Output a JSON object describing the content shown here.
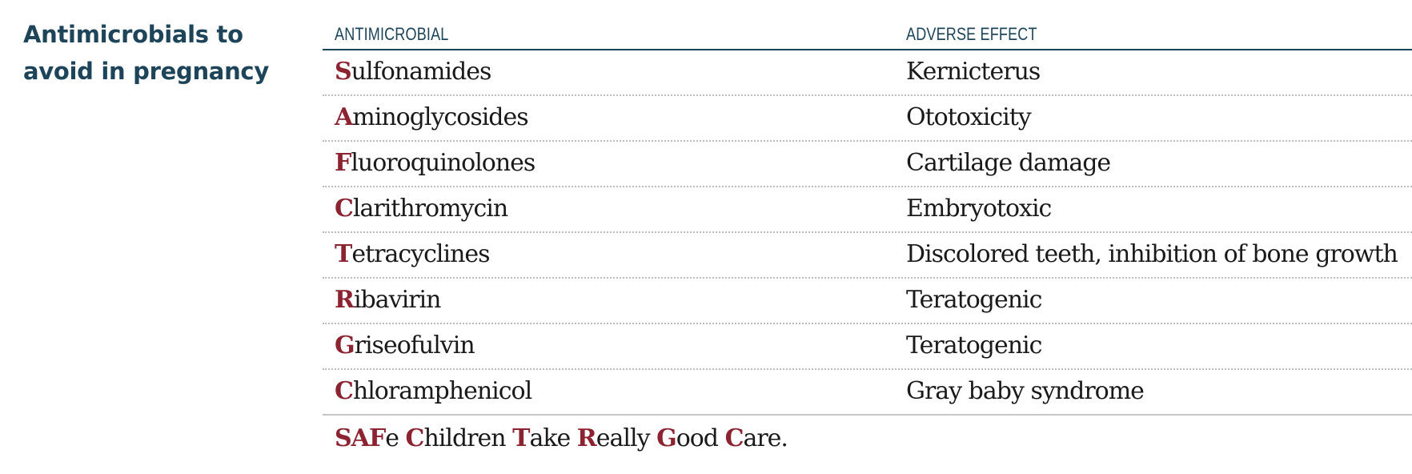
{
  "side_title": {
    "line1": "Antimicrobials to",
    "line2": "avoid in pregnancy"
  },
  "headers": {
    "antimicrobial": "ANTIMICROBIAL",
    "adverse_effect": "ADVERSE EFFECT"
  },
  "rows": [
    {
      "initial": "S",
      "drug_rest": "ulfonamides",
      "effect": "Kernicterus"
    },
    {
      "initial": "A",
      "drug_rest": "minoglycosides",
      "effect": "Ototoxicity"
    },
    {
      "initial": "F",
      "drug_rest": "luoroquinolones",
      "effect": "Cartilage damage"
    },
    {
      "initial": "C",
      "drug_rest": "larithromycin",
      "effect": "Embryotoxic"
    },
    {
      "initial": "T",
      "drug_rest": "etracyclines",
      "effect": "Discolored teeth, inhibition of bone growth"
    },
    {
      "initial": "R",
      "drug_rest": "ibavirin",
      "effect": "Teratogenic"
    },
    {
      "initial": "G",
      "drug_rest": "riseofulvin",
      "effect": "Teratogenic"
    },
    {
      "initial": "C",
      "drug_rest": "hloramphenicol",
      "effect": "Gray baby syndrome"
    }
  ],
  "mnemonic": [
    {
      "text": "SAF",
      "hl": true
    },
    {
      "text": "e ",
      "hl": false
    },
    {
      "text": "C",
      "hl": true
    },
    {
      "text": "hildren ",
      "hl": false
    },
    {
      "text": "T",
      "hl": true
    },
    {
      "text": "ake ",
      "hl": false
    },
    {
      "text": "R",
      "hl": true
    },
    {
      "text": "eally ",
      "hl": false
    },
    {
      "text": "G",
      "hl": true
    },
    {
      "text": "ood ",
      "hl": false
    },
    {
      "text": "C",
      "hl": true
    },
    {
      "text": "are.",
      "hl": false
    }
  ],
  "colors": {
    "heading": "#1d4459",
    "accent": "#8c2331",
    "text": "#1a1a1a"
  }
}
